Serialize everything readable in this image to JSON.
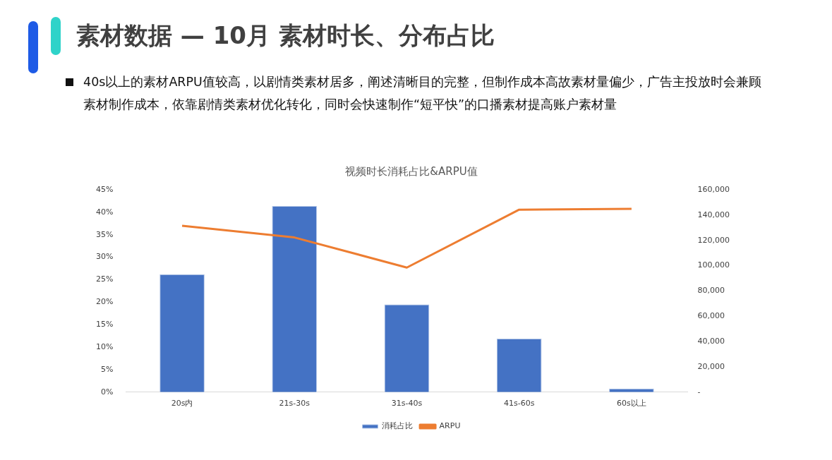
{
  "chart_data": {
    "type": "bar",
    "title": "素材数据 — 10月 素材时长、分布占比",
    "subtitle": "视频时长消耗占比&ARPU值",
    "annotations": [
      "40s以上的素材ARPU值较高，以剧情类素材居多，阐述清晰目的完整，但制作成本高故素材量偏少，广告主投放时会兼顾素材制作成本，依靠剧情类素材优化转化，同时会快速制作“短平快”的口播素材提高账户素材量"
    ],
    "categories": [
      "20s内",
      "21s-30s",
      "31s-40s",
      "41s-60s",
      "60s以上"
    ],
    "series": [
      {
        "name": "消耗占比",
        "color": "#4472c4",
        "values": [
          26.2,
          41.4,
          19.5,
          11.9,
          0.8
        ]
      },
      {
        "name": "ARPU",
        "type": "line",
        "axis": "y2",
        "color": "#ed7d31",
        "values": [
          131600,
          122300,
          98500,
          144300,
          144900
        ]
      }
    ],
    "ylim": [
      0,
      45
    ],
    "yticks": [
      {
        "value": 0,
        "label": "0%"
      },
      {
        "value": 5,
        "label": "5%"
      },
      {
        "value": 10,
        "label": "10%"
      },
      {
        "value": 15,
        "label": "15%"
      },
      {
        "value": 20,
        "label": "20%"
      },
      {
        "value": 25,
        "label": "25%"
      },
      {
        "value": 30,
        "label": "30%"
      },
      {
        "value": 35,
        "label": "35%"
      },
      {
        "value": 40,
        "label": "40%"
      },
      {
        "value": 45,
        "label": "45%"
      }
    ],
    "y2lim": [
      0,
      160000
    ],
    "y2ticks": [
      {
        "value": 0,
        "label": "-"
      },
      {
        "value": 20000,
        "label": "20,000"
      },
      {
        "value": 40000,
        "label": "40,000"
      },
      {
        "value": 60000,
        "label": "60,000"
      },
      {
        "value": 80000,
        "label": "80,000"
      },
      {
        "value": 100000,
        "label": "100,000"
      },
      {
        "value": 120000,
        "label": "120,000"
      },
      {
        "value": 140000,
        "label": "140,000"
      },
      {
        "value": 160000,
        "label": "160,000"
      }
    ],
    "grid": false,
    "legend": "bottom",
    "marker": "none",
    "line_style": "solid"
  }
}
